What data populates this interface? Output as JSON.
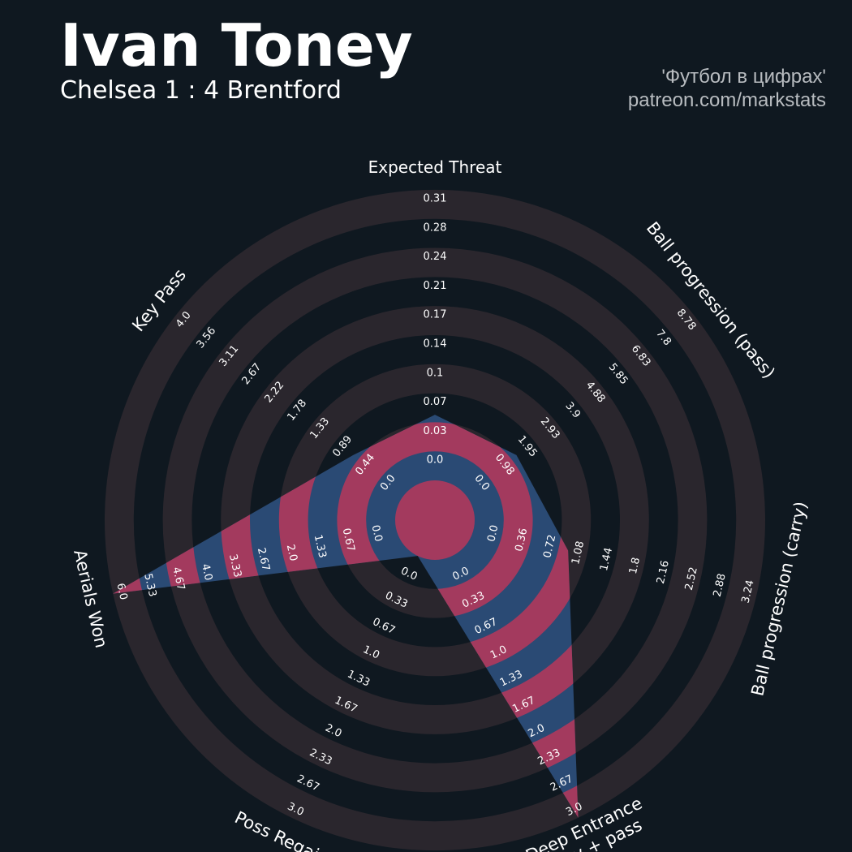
{
  "player_name": "Ivan Toney",
  "match": "Chelsea 1 : 4 Brentford",
  "credit": {
    "line1": "'Футбол в цифрах'",
    "line2": "patreon.com/markstats"
  },
  "colors": {
    "background": "#0f1820",
    "ring": "#2a262d",
    "poly_blue": "#2a4a74",
    "poly_pink": "#a33a5e",
    "text": "#ffffff"
  },
  "chart_data": {
    "type": "radar",
    "title": "Ivan Toney",
    "subtitle": "Chelsea 1 : 4 Brentford",
    "axes": [
      {
        "label": "Expected Threat",
        "ticks": [
          "0.0",
          "0.03",
          "0.07",
          "0.1",
          "0.14",
          "0.17",
          "0.21",
          "0.24",
          "0.28",
          "0.31"
        ],
        "max": 0.31,
        "value": 0.07
      },
      {
        "label": "Ball progression (pass)",
        "ticks": [
          "0.0",
          "0.98",
          "1.95",
          "2.93",
          "3.9",
          "4.88",
          "5.85",
          "6.83",
          "7.8",
          "8.78"
        ],
        "max": 8.78,
        "value": 1.95
      },
      {
        "label": "Ball progression (carry)",
        "ticks": [
          "0.0",
          "0.36",
          "0.72",
          "1.08",
          "1.44",
          "1.8",
          "2.16",
          "2.52",
          "2.88",
          "3.24"
        ],
        "max": 3.24,
        "value": 1.08
      },
      {
        "label": "Deep Entrance\ncarry + pass",
        "ticks": [
          "0.0",
          "0.33",
          "0.67",
          "1.0",
          "1.33",
          "1.67",
          "2.0",
          "2.33",
          "2.67",
          "3.0"
        ],
        "max": 3.0,
        "value": 3.0
      },
      {
        "label": "Poss Regain",
        "ticks": [
          "0.0",
          "0.33",
          "0.67",
          "1.0",
          "1.33",
          "1.67",
          "2.0",
          "2.33",
          "2.67",
          "3.0"
        ],
        "max": 3.0,
        "value": 0.0
      },
      {
        "label": "Aerials Won",
        "ticks": [
          "0.0",
          "0.67",
          "1.33",
          "2.0",
          "2.67",
          "3.33",
          "4.0",
          "4.67",
          "5.33",
          "6.0"
        ],
        "max": 6.0,
        "value": 6.0
      },
      {
        "label": "Key Pass",
        "ticks": [
          "0.0",
          "0.44",
          "0.89",
          "1.33",
          "1.78",
          "2.22",
          "2.67",
          "3.11",
          "3.56",
          "4.0"
        ],
        "max": 4.0,
        "value": 0.89
      }
    ],
    "rings": 9,
    "grid": true
  }
}
